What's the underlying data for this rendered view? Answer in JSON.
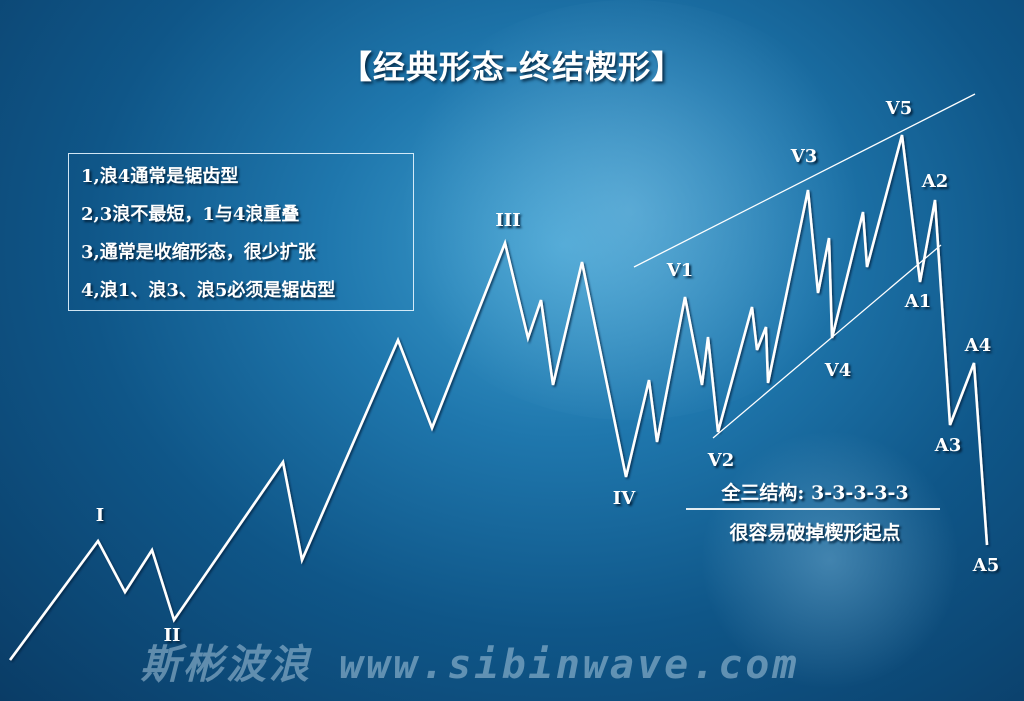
{
  "title": "【经典形态-终结楔形】",
  "rules": [
    "1,浪4通常是锯齿型",
    "2,3浪不最短，1与4浪重叠",
    "3,通常是收缩形态，很少扩张",
    "4,浪1、浪3、浪5必须是锯齿型"
  ],
  "wave_labels": {
    "I": "I",
    "II": "II",
    "III": "III",
    "IV": "IV",
    "V1": "V1",
    "V2": "V2",
    "V3": "V3",
    "V4": "V4",
    "V5": "V5",
    "A1": "A1",
    "A2": "A2",
    "A3": "A3",
    "A4": "A4",
    "A5": "A5"
  },
  "notes": {
    "structure": "全三结构: 3-3-3-3-3",
    "warning": "很容易破掉楔形起点"
  },
  "watermark": "斯彬波浪 www.sibinwave.com",
  "colors": {
    "line": "#ffffff",
    "background": "#1f77ad"
  }
}
